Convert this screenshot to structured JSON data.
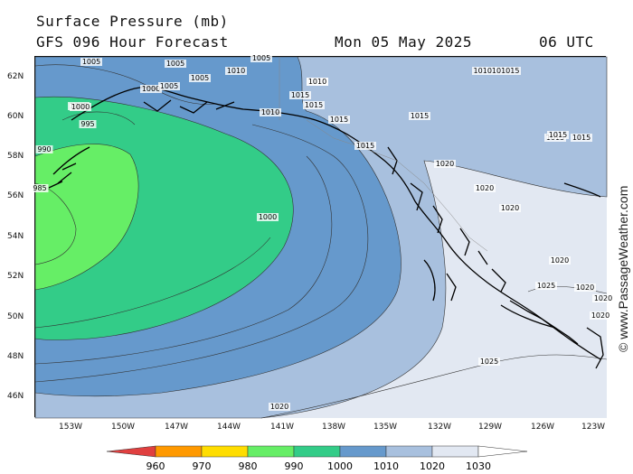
{
  "header": {
    "title": "Surface Pressure (mb)",
    "forecast": "GFS 096 Hour Forecast",
    "date": "Mon 05 May 2025",
    "time": "06 UTC"
  },
  "map": {
    "latitude_labels": [
      "62N",
      "60N",
      "58N",
      "56N",
      "54N",
      "52N",
      "50N",
      "48N",
      "46N"
    ],
    "longitude_labels": [
      "153W",
      "150W",
      "147W",
      "144W",
      "141W",
      "138W",
      "135W",
      "132W",
      "129W",
      "126W",
      "123W"
    ],
    "contour_labels": [
      "1005",
      "1005",
      "1005",
      "1005",
      "1000",
      "1005",
      "1010",
      "1010",
      "1005",
      "1015",
      "1015",
      "1010",
      "1010",
      "1015",
      "1015",
      "1015",
      "1010101015",
      "1015",
      "1015",
      "1015",
      "1000",
      "995",
      "990",
      "985",
      "1000",
      "1020",
      "1020",
      "1020",
      "1020",
      "1025",
      "1020",
      "1020",
      "1020",
      "1025",
      "1020"
    ],
    "colors": {
      "below_990": "#66ee66",
      "band_990_1000": "#33cc88",
      "band_1000_1010": "#6699cc",
      "band_1010_1020": "#a8c0de",
      "band_1020_1030": "#e2e8f2",
      "land_outline": "#000000"
    }
  },
  "watermark": "© www.PassageWeather.com",
  "legend": {
    "ticks": [
      "960",
      "970",
      "980",
      "990",
      "1000",
      "1010",
      "1020",
      "1030"
    ],
    "colors": [
      "#e04040",
      "#ff9900",
      "#ffdd00",
      "#66ee66",
      "#33cc88",
      "#6699cc",
      "#a8c0de",
      "#e2e8f2"
    ]
  }
}
